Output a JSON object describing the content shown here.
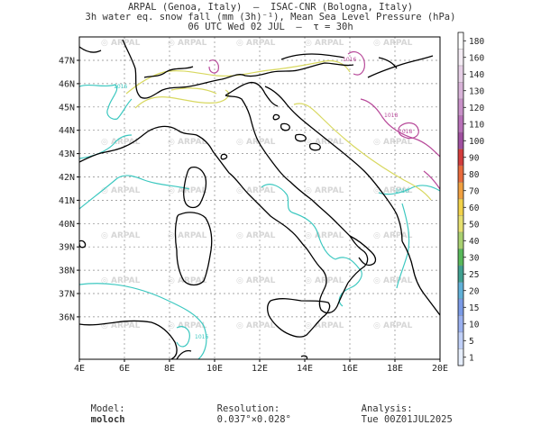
{
  "header": {
    "line1": "ARPAL (Genoa, Italy)  —  ISAC-CNR (Bologna, Italy)",
    "line2": "3h water eq. snow fall (mm (3h)⁻¹), Mean Sea Level Pressure (hPa)",
    "line3": "06 UTC Wed 02 JUL  —  τ = 30h"
  },
  "map": {
    "lon_labels": [
      "4E",
      "6E",
      "8E",
      "10E",
      "12E",
      "14E",
      "16E",
      "18E",
      "20E"
    ],
    "lat_labels": [
      "47N",
      "46N",
      "45N",
      "44N",
      "43N",
      "42N",
      "41N",
      "40N",
      "39N",
      "38N",
      "37N",
      "36N"
    ],
    "watermark": "ARPAL",
    "isobar_labels": [
      "1016",
      "1016",
      "1018",
      "1018",
      "1016",
      "1016"
    ],
    "colors": {
      "coast": "#000000",
      "isobar_cyan": "#3cc8c0",
      "isobar_yellow": "#d8d860",
      "isobar_magenta": "#b84a9a"
    }
  },
  "colorbar": {
    "values": [
      "180",
      "160",
      "140",
      "130",
      "120",
      "110",
      "100",
      "90",
      "80",
      "70",
      "60",
      "50",
      "40",
      "30",
      "25",
      "20",
      "15",
      "10",
      "5",
      "1"
    ],
    "colors": [
      "#ffffff",
      "#f4ecf4",
      "#e6cfe6",
      "#d8b2d8",
      "#c890c8",
      "#b870b8",
      "#a050a0",
      "#d23c3c",
      "#e86a3c",
      "#f0a040",
      "#f2d24a",
      "#e6e070",
      "#a8d070",
      "#58b85a",
      "#40a090",
      "#60b0d8",
      "#7a9ae6",
      "#9ab0f0",
      "#c0d0f8",
      "#e6eefc"
    ]
  },
  "footer": {
    "model_label": "Model:",
    "model_value": "moloch",
    "resolution_label": "Resolution:",
    "resolution_value": "0.037°×0.028°",
    "analysis_label": "Analysis:",
    "analysis_value": "Tue 00Z01JUL2025"
  }
}
